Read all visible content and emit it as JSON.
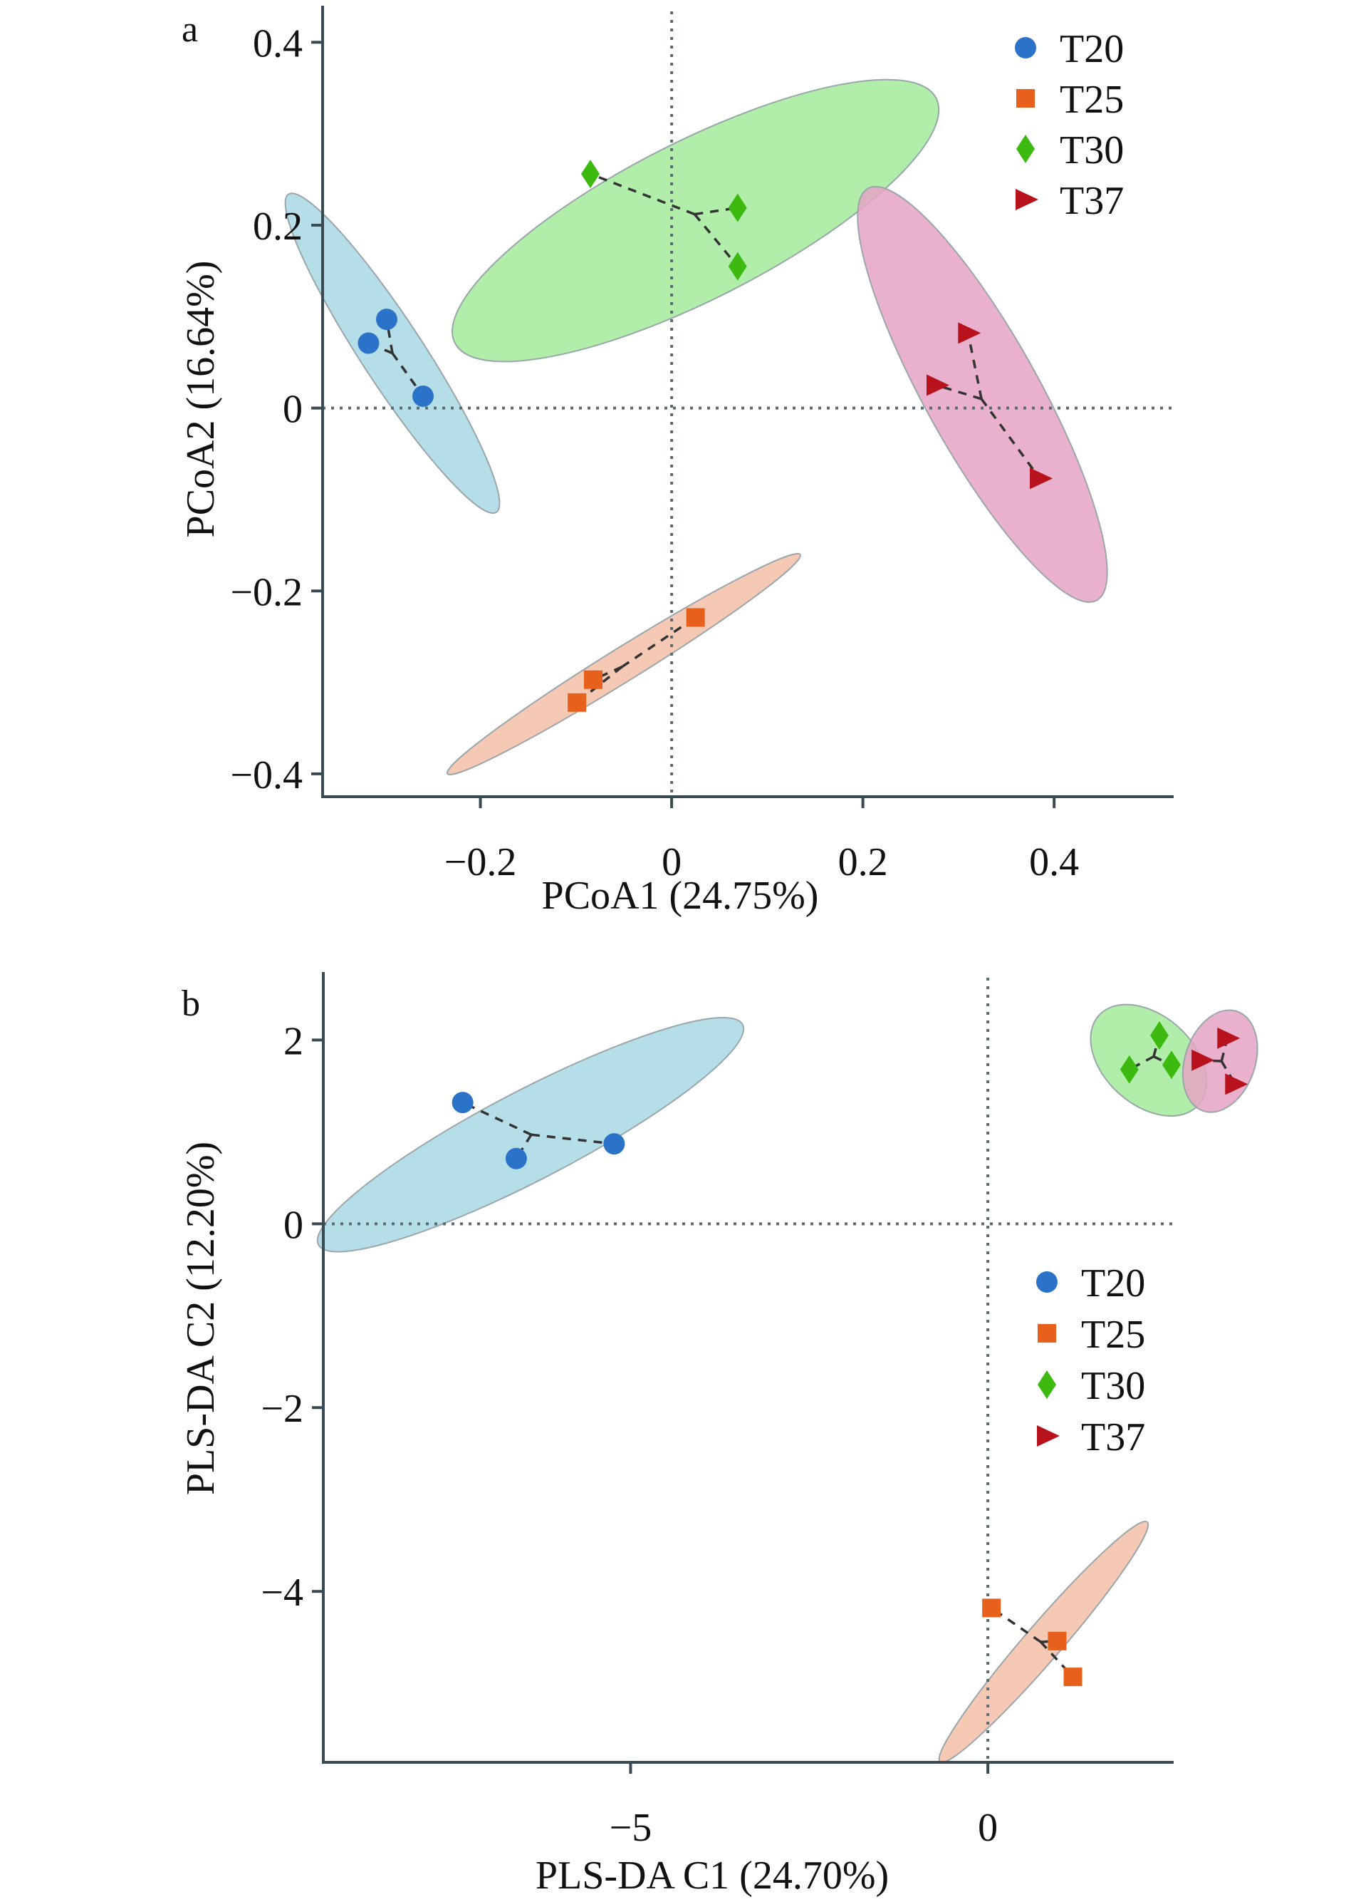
{
  "figure": {
    "panels": [
      "a",
      "b"
    ]
  },
  "chart_data": [
    {
      "type": "scatter",
      "panel_label": "a",
      "title": "",
      "xlabel": "PCoA1 (24.75%)",
      "ylabel": "PCoA2 (16.64%)",
      "xlim": [
        -0.365,
        0.525
      ],
      "ylim": [
        -0.425,
        0.44
      ],
      "xticks": [
        -0.2,
        0,
        0.2,
        0.4
      ],
      "xtick_labels": [
        "−0.2",
        "0",
        "0.2",
        "0.4"
      ],
      "yticks": [
        -0.4,
        -0.2,
        0,
        0.2,
        0.4
      ],
      "ytick_labels": [
        "−0.4",
        "−0.2",
        "0",
        "0.2",
        "0.4"
      ],
      "reference_lines": {
        "x": 0,
        "y": 0
      },
      "grid": false,
      "legend_position": "top-right",
      "series": [
        {
          "name": "T20",
          "marker": "circle",
          "color": "#2b73c9",
          "ellipse_color": "#a8d8e4",
          "points": [
            [
              -0.298,
              0.097
            ],
            [
              -0.317,
              0.071
            ],
            [
              -0.26,
              0.013
            ]
          ],
          "centroid": [
            -0.292,
            0.06
          ],
          "ellipse": {
            "cx": -0.292,
            "cy": 0.06,
            "rx": 0.205,
            "ry": 0.033,
            "angle_deg": -58
          }
        },
        {
          "name": "T25",
          "marker": "square",
          "color": "#e8611c",
          "ellipse_color": "#f4bfa8",
          "points": [
            [
              0.025,
              -0.229
            ],
            [
              -0.082,
              -0.297
            ],
            [
              -0.099,
              -0.322
            ]
          ],
          "centroid": [
            -0.052,
            -0.283
          ],
          "ellipse": {
            "cx": -0.05,
            "cy": -0.28,
            "rx": 0.22,
            "ry": 0.018,
            "angle_deg": 33
          }
        },
        {
          "name": "T30",
          "marker": "diamond",
          "color": "#3cba0f",
          "ellipse_color": "#a3eb9a",
          "points": [
            [
              -0.085,
              0.256
            ],
            [
              0.069,
              0.219
            ],
            [
              0.069,
              0.155
            ]
          ],
          "centroid": [
            0.024,
            0.212
          ],
          "ellipse": {
            "cx": 0.025,
            "cy": 0.205,
            "rx": 0.285,
            "ry": 0.085,
            "angle_deg": 28
          }
        },
        {
          "name": "T37",
          "marker": "triangle-right",
          "color": "#b8121c",
          "ellipse_color": "#e6a3c6",
          "points": [
            [
              0.31,
              0.082
            ],
            [
              0.277,
              0.025
            ],
            [
              0.385,
              -0.077
            ]
          ],
          "centroid": [
            0.324,
            0.01
          ],
          "ellipse": {
            "cx": 0.325,
            "cy": 0.015,
            "rx": 0.255,
            "ry": 0.06,
            "angle_deg": -62
          }
        }
      ]
    },
    {
      "type": "scatter",
      "panel_label": "b",
      "title": "",
      "xlabel": "PLS-DA C1 (24.70%)",
      "ylabel": "PLS-DA C2 (12.20%)",
      "xlim": [
        -9.3,
        2.6
      ],
      "ylim": [
        -5.86,
        2.74
      ],
      "xticks": [
        -5,
        0
      ],
      "xtick_labels": [
        "−5",
        "0"
      ],
      "yticks": [
        -4,
        -2,
        0,
        2
      ],
      "ytick_labels": [
        "−4",
        "−2",
        "0",
        "2"
      ],
      "reference_lines": {
        "x": 0,
        "y": 0
      },
      "grid": false,
      "legend_position": "right",
      "series": [
        {
          "name": "T20",
          "marker": "circle",
          "color": "#2b73c9",
          "ellipse_color": "#a8d8e4",
          "points": [
            [
              -7.35,
              1.32
            ],
            [
              -6.6,
              0.71
            ],
            [
              -5.23,
              0.87
            ]
          ],
          "centroid": [
            -6.39,
            0.97
          ],
          "ellipse": {
            "cx": -6.4,
            "cy": 0.97,
            "rx": 3.2,
            "ry": 0.5,
            "angle_deg": 22
          }
        },
        {
          "name": "T25",
          "marker": "square",
          "color": "#e8611c",
          "ellipse_color": "#f4bfa8",
          "points": [
            [
              0.05,
              -4.18
            ],
            [
              0.97,
              -4.54
            ],
            [
              1.19,
              -4.93
            ]
          ],
          "centroid": [
            0.74,
            -4.55
          ],
          "ellipse": {
            "cx": 0.78,
            "cy": -4.55,
            "rx": 1.95,
            "ry": 0.22,
            "angle_deg": 42
          }
        },
        {
          "name": "T30",
          "marker": "diamond",
          "color": "#3cba0f",
          "ellipse_color": "#a3eb9a",
          "points": [
            [
              2.4,
              2.05
            ],
            [
              1.98,
              1.68
            ],
            [
              2.57,
              1.73
            ]
          ],
          "centroid": [
            2.32,
            1.82
          ],
          "ellipse": {
            "cx": 2.25,
            "cy": 1.78,
            "rx": 0.85,
            "ry": 0.52,
            "angle_deg": -35
          }
        },
        {
          "name": "T37",
          "marker": "triangle-right",
          "color": "#b8121c",
          "ellipse_color": "#e6a3c6",
          "points": [
            [
              3.35,
              2.02
            ],
            [
              2.99,
              1.78
            ],
            [
              3.46,
              1.52
            ]
          ],
          "centroid": [
            3.27,
            1.77
          ],
          "ellipse": {
            "cx": 3.25,
            "cy": 1.77,
            "rx": 0.48,
            "ry": 0.58,
            "angle_deg": -15
          }
        }
      ]
    }
  ]
}
